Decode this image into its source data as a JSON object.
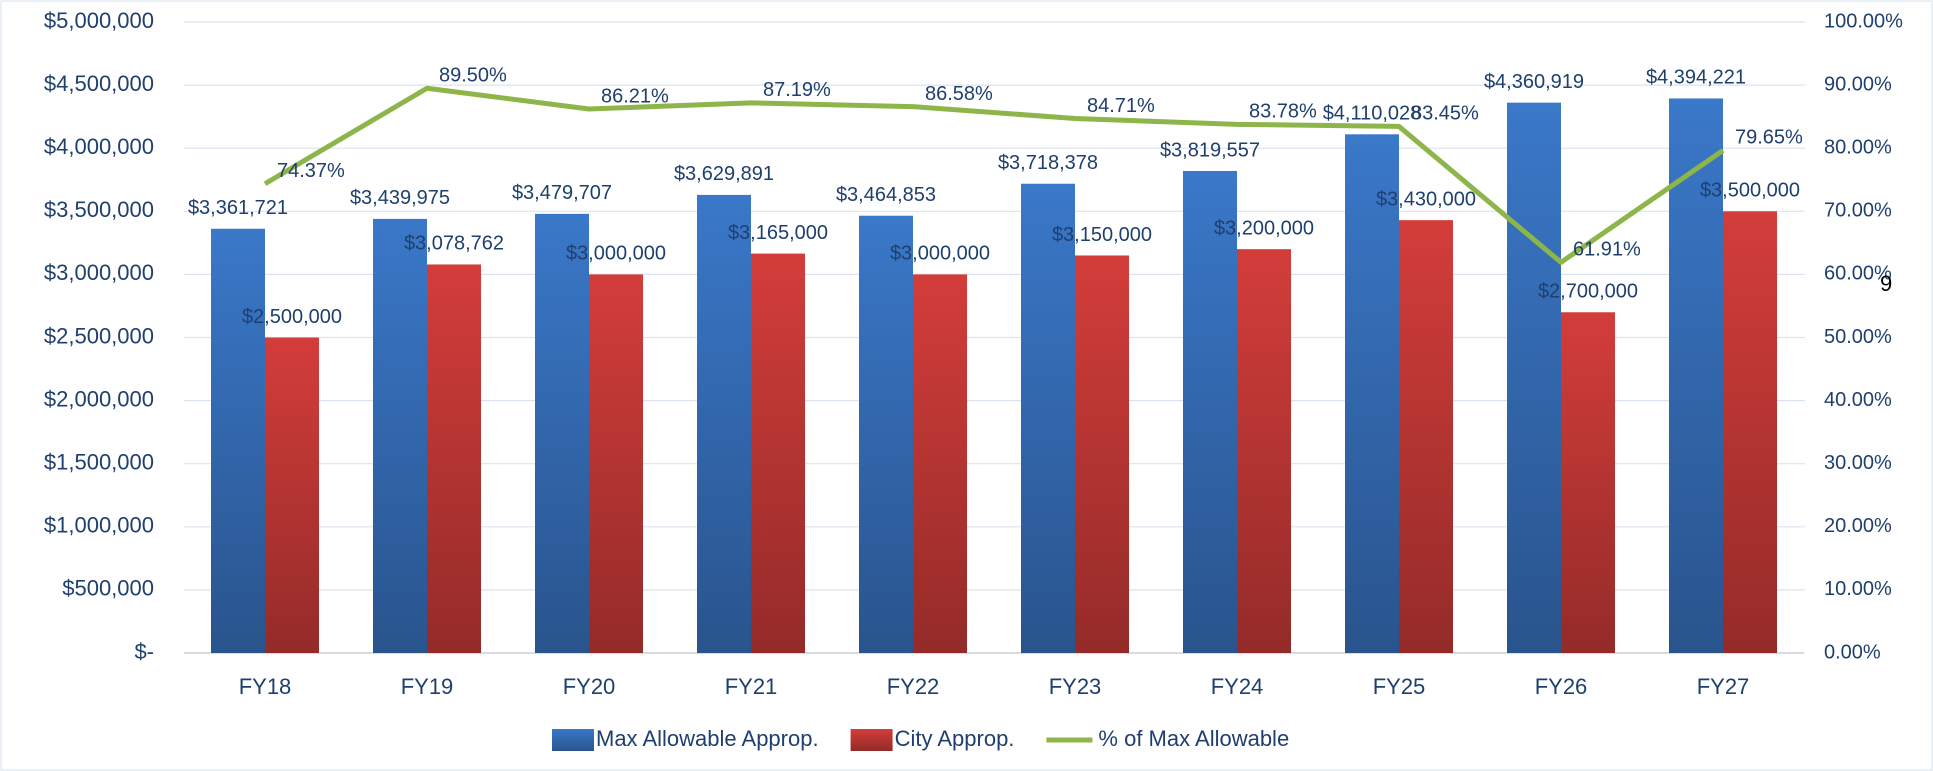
{
  "chart_data": {
    "type": "bar",
    "categories": [
      "FY18",
      "FY19",
      "FY20",
      "FY21",
      "FY22",
      "FY23",
      "FY24",
      "FY25",
      "FY26",
      "FY27"
    ],
    "series": [
      {
        "name": "Max Allowable Approp.",
        "color": "#3a78c9",
        "values": [
          3361721,
          3439975,
          3479707,
          3629891,
          3464853,
          3718378,
          3819557,
          4110028,
          4360919,
          4394221
        ],
        "value_labels": [
          "$3,361,721",
          "$3,439,975",
          "$3,479,707",
          "$3,629,891",
          "$3,464,853",
          "$3,718,378",
          "$3,819,557",
          "$4,110,028",
          "$4,360,919",
          "$4,394,221"
        ]
      },
      {
        "name": "City Approp.",
        "color": "#d33d3a",
        "values": [
          2500000,
          3078762,
          3000000,
          3165000,
          3000000,
          3150000,
          3200000,
          3430000,
          2700000,
          3500000
        ],
        "value_labels": [
          "$2,500,000",
          "$3,078,762",
          "$3,000,000",
          "$3,165,000",
          "$3,000,000",
          "$3,150,000",
          "$3,200,000",
          "$3,430,000",
          "$2,700,000",
          "$3,500,000"
        ]
      },
      {
        "name": "% of Max Allowable",
        "color": "#8db54a",
        "type": "line",
        "axis": "y2",
        "values": [
          74.37,
          89.5,
          86.21,
          87.19,
          86.58,
          84.71,
          83.78,
          83.45,
          61.91,
          79.65
        ],
        "value_labels": [
          "74.37%",
          "89.50%",
          "86.21%",
          "87.19%",
          "86.58%",
          "84.71%",
          "83.78%",
          "83.45%",
          "61.91%",
          "79.65%"
        ]
      }
    ],
    "ylim": [
      0,
      5000000
    ],
    "yticks": [
      {
        "value": 0,
        "label": "$-"
      },
      {
        "value": 500000,
        "label": "$500,000"
      },
      {
        "value": 1000000,
        "label": "$1,000,000"
      },
      {
        "value": 1500000,
        "label": "$1,500,000"
      },
      {
        "value": 2000000,
        "label": "$2,000,000"
      },
      {
        "value": 2500000,
        "label": "$2,500,000"
      },
      {
        "value": 3000000,
        "label": "$3,000,000"
      },
      {
        "value": 3500000,
        "label": "$3,500,000"
      },
      {
        "value": 4000000,
        "label": "$4,000,000"
      },
      {
        "value": 4500000,
        "label": "$4,500,000"
      },
      {
        "value": 5000000,
        "label": "$5,000,000"
      }
    ],
    "y2lim": [
      0,
      100
    ],
    "y2ticks": [
      {
        "value": 0,
        "label": "0.00%"
      },
      {
        "value": 10,
        "label": "10.00%"
      },
      {
        "value": 20,
        "label": "20.00%"
      },
      {
        "value": 30,
        "label": "30.00%"
      },
      {
        "value": 40,
        "label": "40.00%"
      },
      {
        "value": 50,
        "label": "50.00%"
      },
      {
        "value": 60,
        "label": "60.00%"
      },
      {
        "value": 70,
        "label": "70.00%"
      },
      {
        "value": 80,
        "label": "80.00%"
      },
      {
        "value": 90,
        "label": "90.00%"
      },
      {
        "value": 100,
        "label": "100.00%"
      }
    ],
    "grid": true,
    "legend": "bottom",
    "page_number": "9"
  }
}
